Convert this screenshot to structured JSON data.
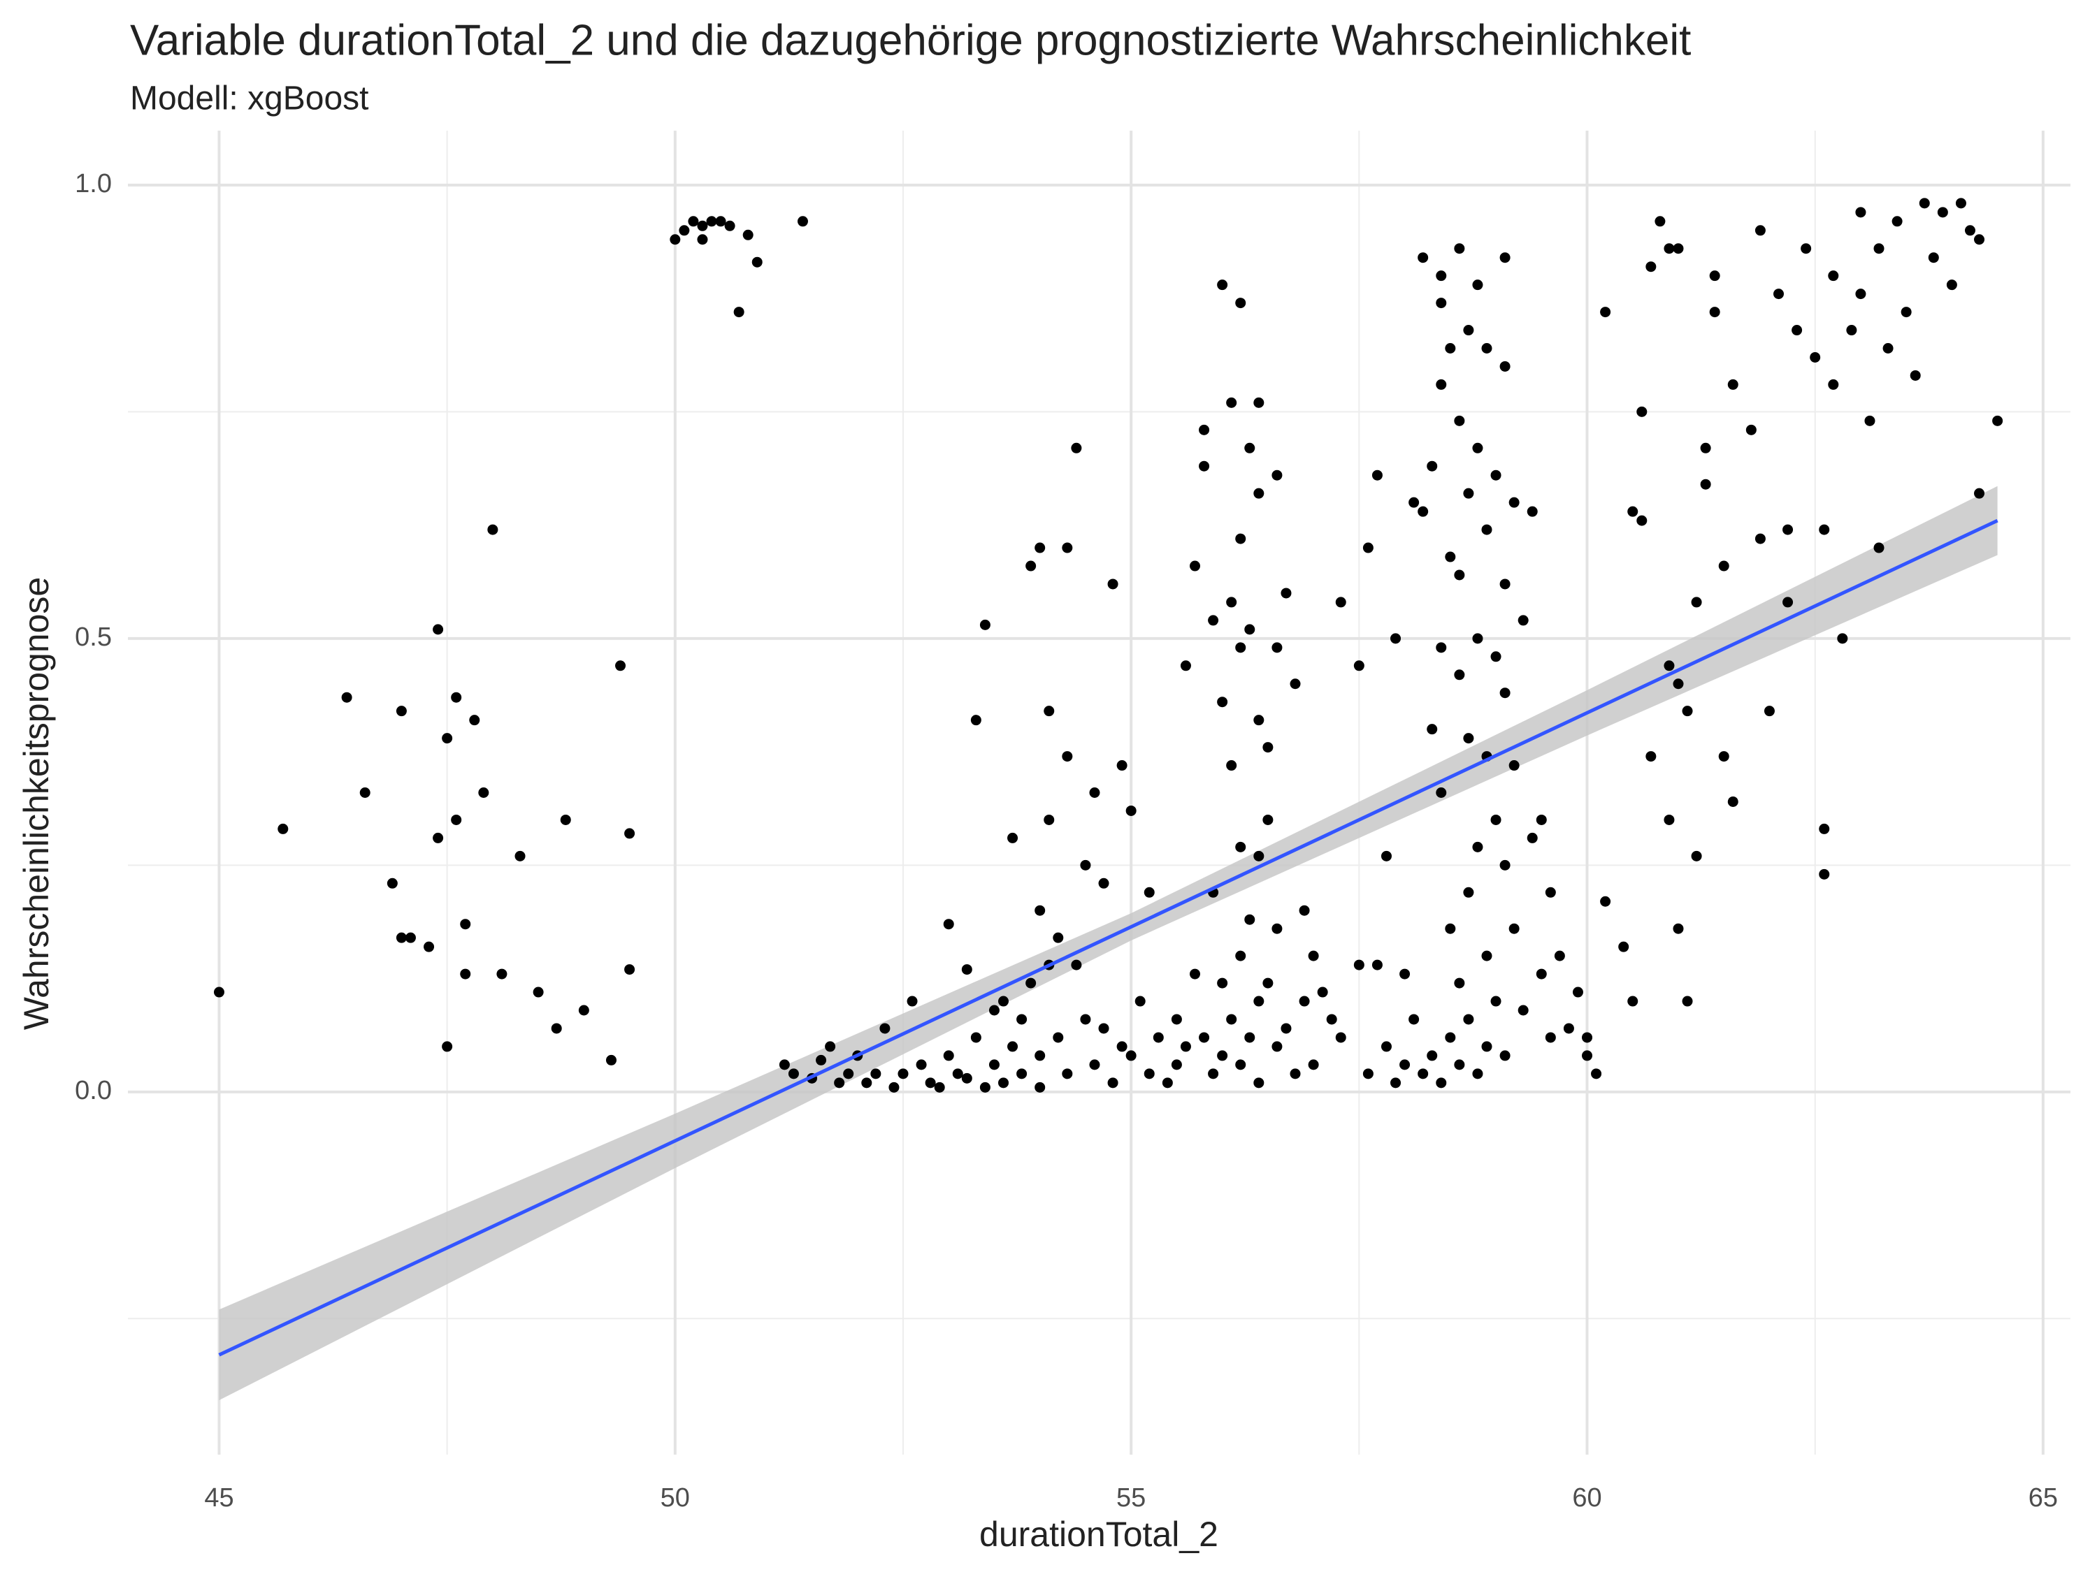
{
  "chart_data": {
    "type": "scatter",
    "title": "Variable durationTotal_2 und die dazugehörige prognostizierte Wahrscheinlichkeit",
    "subtitle": "Modell: xgBoost",
    "x_label": "durationTotal_2",
    "y_label": "Wahrscheinlichkeitsprognose",
    "xlim": [
      44.0,
      65.3
    ],
    "ylim": [
      -0.4,
      1.06
    ],
    "xticks": [
      45,
      50,
      55,
      60,
      65
    ],
    "yticks": [
      {
        "value": 0,
        "label": "0.0"
      },
      0.5,
      {
        "value": 1,
        "label": "1.0"
      }
    ],
    "x_minor_grid": [
      47.5,
      52.5,
      57.5,
      62.5
    ],
    "y_minor_grid": [
      -0.25,
      0.25,
      0.75
    ],
    "grid": true,
    "points": {
      "color": "#000000",
      "x": [
        45,
        45.7,
        46.4,
        46.6,
        46.9,
        47.0,
        47.0,
        47.1,
        47.3,
        47.4,
        47.4,
        47.5,
        47.5,
        47.6,
        47.6,
        47.7,
        47.7,
        47.8,
        47.9,
        48.0,
        48.1,
        48.3,
        48.5,
        48.7,
        48.8,
        49.0,
        49.3,
        49.4,
        49.5,
        49.5,
        50.0,
        50.1,
        50.2,
        50.3,
        50.3,
        50.4,
        50.5,
        50.6,
        50.7,
        50.8,
        50.9,
        51.4,
        51.2,
        51.3,
        51.5,
        51.6,
        51.7,
        51.8,
        51.9,
        52.0,
        52.1,
        52.2,
        52.3,
        52.4,
        52.5,
        52.6,
        52.7,
        52.8,
        52.9,
        53.0,
        53.0,
        53.1,
        53.2,
        53.2,
        53.3,
        53.3,
        53.4,
        53.4,
        53.5,
        53.5,
        53.6,
        53.6,
        53.7,
        53.7,
        53.8,
        53.8,
        53.9,
        53.9,
        54.0,
        54.0,
        54.0,
        54.0,
        54.1,
        54.1,
        54.1,
        54.2,
        54.2,
        54.3,
        54.3,
        54.3,
        54.4,
        54.4,
        54.5,
        54.5,
        54.6,
        54.6,
        54.7,
        54.7,
        54.8,
        54.8,
        54.9,
        54.9,
        55.0,
        55.0,
        55.1,
        55.2,
        55.2,
        55.3,
        55.4,
        55.5,
        55.5,
        55.6,
        55.6,
        55.7,
        55.7,
        55.8,
        55.8,
        55.8,
        55.9,
        55.9,
        55.9,
        56.0,
        56.0,
        56.0,
        56.0,
        56.1,
        56.1,
        56.1,
        56.1,
        56.2,
        56.2,
        56.2,
        56.2,
        56.2,
        56.2,
        56.3,
        56.3,
        56.3,
        56.3,
        56.4,
        56.4,
        56.4,
        56.4,
        56.4,
        56.4,
        56.5,
        56.5,
        56.5,
        56.6,
        56.6,
        56.6,
        56.6,
        56.7,
        56.7,
        56.8,
        56.8,
        56.9,
        56.9,
        57.0,
        57.0,
        57.1,
        57.2,
        57.3,
        57.5,
        57.3,
        57.5,
        57.6,
        57.6,
        57.7,
        57.7,
        57.8,
        57.8,
        57.9,
        57.9,
        58.0,
        58.0,
        58.1,
        58.1,
        58.2,
        58.2,
        58.2,
        58.3,
        58.3,
        58.3,
        58.4,
        58.4,
        58.4,
        58.4,
        58.4,
        58.4,
        58.5,
        58.5,
        58.5,
        58.5,
        58.6,
        58.6,
        58.6,
        58.6,
        58.6,
        58.6,
        58.7,
        58.7,
        58.7,
        58.7,
        58.7,
        58.8,
        58.8,
        58.8,
        58.8,
        58.8,
        58.9,
        58.9,
        58.9,
        58.9,
        58.9,
        59.0,
        59.0,
        59.0,
        59.0,
        59.1,
        59.1,
        59.1,
        59.1,
        59.1,
        59.1,
        59.2,
        59.2,
        59.2,
        59.3,
        59.3,
        59.4,
        59.4,
        59.5,
        59.5,
        59.6,
        59.6,
        59.7,
        59.8,
        59.9,
        60.0,
        60.0,
        60.1,
        60.2,
        60.2,
        60.4,
        60.5,
        60.5,
        60.6,
        60.6,
        60.7,
        60.7,
        60.8,
        60.9,
        60.9,
        60.9,
        61.0,
        61.0,
        61.0,
        61.1,
        61.1,
        61.2,
        61.2,
        61.3,
        61.3,
        61.4,
        61.4,
        61.5,
        61.5,
        61.6,
        61.6,
        61.8,
        61.9,
        61.9,
        62.0,
        62.1,
        62.2,
        62.3,
        62.4,
        62.5,
        62.6,
        62.6,
        62.7,
        62.7,
        62.8,
        62.9,
        63.0,
        63.0,
        63.1,
        63.2,
        63.2,
        63.3,
        63.4,
        63.5,
        63.6,
        63.7,
        63.8,
        63.9,
        64.0,
        64.1,
        64.2,
        64.3,
        64.3,
        64.5,
        62.6,
        62.2
      ],
      "y": [
        0.11,
        0.29,
        0.435,
        0.33,
        0.23,
        0.42,
        0.17,
        0.17,
        0.16,
        0.51,
        0.28,
        0.39,
        0.05,
        0.3,
        0.435,
        0.185,
        0.13,
        0.41,
        0.33,
        0.62,
        0.13,
        0.26,
        0.11,
        0.07,
        0.3,
        0.09,
        0.035,
        0.47,
        0.285,
        0.135,
        0.94,
        0.95,
        0.96,
        0.94,
        0.955,
        0.96,
        0.96,
        0.955,
        0.86,
        0.945,
        0.915,
        0.96,
        0.03,
        0.02,
        0.015,
        0.035,
        0.05,
        0.01,
        0.02,
        0.04,
        0.01,
        0.02,
        0.07,
        0.005,
        0.02,
        0.1,
        0.03,
        0.01,
        0.005,
        0.185,
        0.04,
        0.02,
        0.135,
        0.015,
        0.41,
        0.06,
        0.515,
        0.005,
        0.09,
        0.03,
        0.1,
        0.01,
        0.28,
        0.05,
        0.08,
        0.02,
        0.58,
        0.12,
        0.6,
        0.04,
        0.2,
        0.005,
        0.42,
        0.3,
        0.14,
        0.17,
        0.06,
        0.6,
        0.37,
        0.02,
        0.71,
        0.14,
        0.25,
        0.08,
        0.33,
        0.03,
        0.07,
        0.23,
        0.56,
        0.01,
        0.36,
        0.05,
        0.31,
        0.04,
        0.1,
        0.22,
        0.02,
        0.06,
        0.01,
        0.03,
        0.08,
        0.47,
        0.05,
        0.58,
        0.13,
        0.73,
        0.69,
        0.06,
        0.52,
        0.02,
        0.22,
        0.89,
        0.43,
        0.12,
        0.04,
        0.76,
        0.54,
        0.36,
        0.08,
        0.87,
        0.61,
        0.49,
        0.27,
        0.15,
        0.03,
        0.71,
        0.51,
        0.19,
        0.06,
        0.76,
        0.66,
        0.41,
        0.26,
        0.1,
        0.01,
        0.38,
        0.3,
        0.12,
        0.68,
        0.49,
        0.18,
        0.05,
        0.55,
        0.07,
        0.45,
        0.02,
        0.2,
        0.1,
        0.15,
        0.03,
        0.11,
        0.08,
        0.06,
        0.14,
        0.54,
        0.47,
        0.6,
        0.02,
        0.68,
        0.14,
        0.26,
        0.05,
        0.5,
        0.01,
        0.13,
        0.03,
        0.65,
        0.08,
        0.92,
        0.64,
        0.02,
        0.69,
        0.4,
        0.04,
        0.9,
        0.87,
        0.78,
        0.49,
        0.33,
        0.01,
        0.82,
        0.59,
        0.18,
        0.06,
        0.93,
        0.74,
        0.57,
        0.46,
        0.12,
        0.03,
        0.84,
        0.66,
        0.39,
        0.22,
        0.08,
        0.89,
        0.71,
        0.5,
        0.27,
        0.02,
        0.82,
        0.62,
        0.37,
        0.15,
        0.05,
        0.68,
        0.48,
        0.3,
        0.1,
        0.92,
        0.8,
        0.56,
        0.44,
        0.25,
        0.04,
        0.65,
        0.36,
        0.18,
        0.52,
        0.09,
        0.64,
        0.28,
        0.3,
        0.13,
        0.22,
        0.06,
        0.15,
        0.07,
        0.11,
        0.06,
        0.04,
        0.02,
        0.86,
        0.21,
        0.16,
        0.1,
        0.64,
        0.63,
        0.75,
        0.37,
        0.91,
        0.96,
        0.93,
        0.47,
        0.3,
        0.93,
        0.45,
        0.18,
        0.42,
        0.1,
        0.26,
        0.54,
        0.71,
        0.67,
        0.86,
        0.9,
        0.58,
        0.37,
        0.78,
        0.32,
        0.73,
        0.61,
        0.95,
        0.42,
        0.88,
        0.54,
        0.84,
        0.93,
        0.81,
        0.62,
        0.29,
        0.9,
        0.78,
        0.5,
        0.84,
        0.97,
        0.88,
        0.74,
        0.6,
        0.93,
        0.82,
        0.96,
        0.86,
        0.79,
        0.98,
        0.92,
        0.97,
        0.89,
        0.98,
        0.95,
        0.94,
        0.66,
        0.74,
        0.24,
        0.62
      ]
    },
    "fit": {
      "color": "#3355ff",
      "band_color": "#c4c4c4",
      "x": [
        45,
        50,
        55,
        60,
        64.5
      ],
      "y": [
        -0.29,
        -0.054,
        0.182,
        0.418,
        0.63
      ],
      "lower": [
        -0.34,
        -0.084,
        0.167,
        0.393,
        0.592
      ],
      "upper": [
        -0.24,
        -0.024,
        0.197,
        0.443,
        0.668
      ]
    }
  }
}
